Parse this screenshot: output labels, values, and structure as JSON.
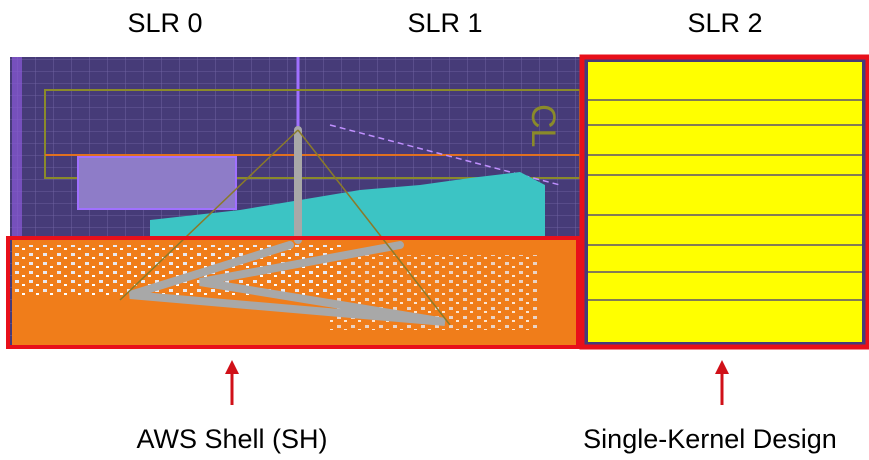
{
  "headers": [
    "SLR 0",
    "SLR 1",
    "SLR 2"
  ],
  "floorplan": {
    "region": "CL"
  },
  "labels": {
    "shell": "AWS Shell (SH)",
    "kernel": "Single-Kernel Design"
  }
}
